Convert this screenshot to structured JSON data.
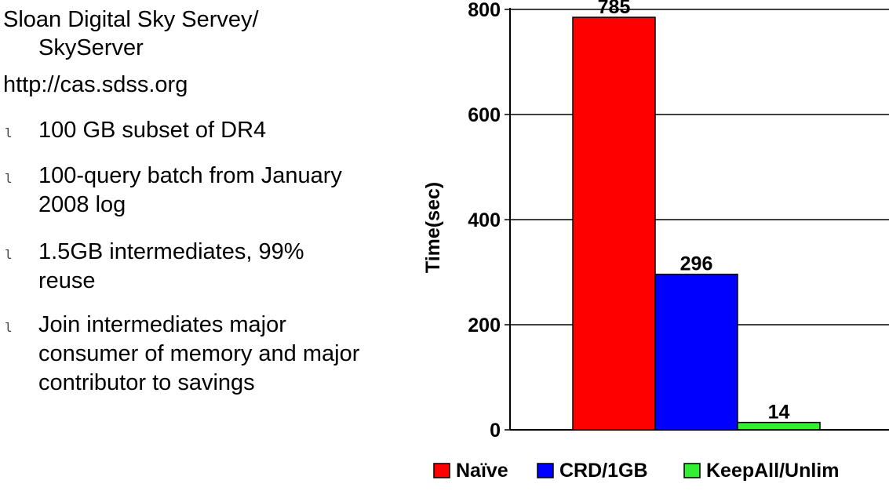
{
  "left_panel": {
    "title_line1": "Sloan Digital Sky Servey/",
    "title_line2": "SkyServer",
    "url": "http://cas.sdss.org",
    "bullet_glyph": "l",
    "bullets": [
      {
        "line1": "100 GB subset of DR4"
      },
      {
        "line1": "100-query batch from January",
        "line2": "2008 log"
      },
      {
        "line1": "1.5GB intermediates, 99%",
        "line2": "reuse"
      },
      {
        "line1": "Join intermediates major",
        "line2": "consumer of memory and major",
        "line3": "contributor to savings"
      }
    ]
  },
  "chart_data": {
    "type": "bar",
    "title": "",
    "xlabel": "",
    "ylabel": "Time(sec)",
    "ylim": [
      0,
      800
    ],
    "yticks": [
      0,
      200,
      400,
      600,
      800
    ],
    "grid": true,
    "legend_position": "bottom",
    "series": [
      {
        "name": "Naïve",
        "value": 785,
        "color": "#ff0000"
      },
      {
        "name": "CRD/1GB",
        "value": 296,
        "color": "#0000ff"
      },
      {
        "name": "KeepAll/Unlim",
        "value": 14,
        "color": "#33ee33"
      }
    ]
  }
}
